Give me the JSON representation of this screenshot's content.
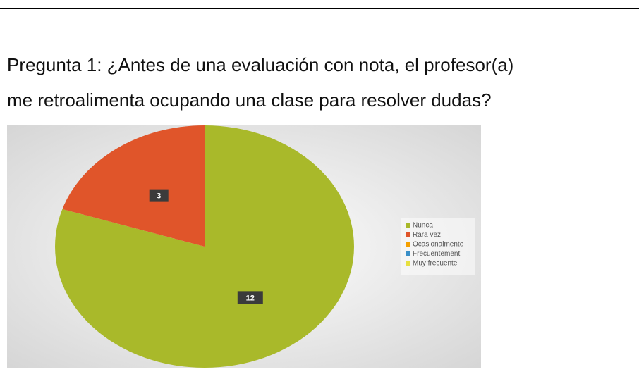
{
  "question_lines": [
    "Pregunta 1: ¿Antes de una evaluación con nota, el profesor(a)",
    "me retroalimenta ocupando una clase para resolver dudas?"
  ],
  "chart_data": {
    "type": "pie",
    "categories": [
      "Nunca",
      "Rara vez",
      "Ocasionalmente",
      "Frecuentement",
      "Muy frecuente"
    ],
    "values": [
      12,
      3,
      0,
      0,
      0
    ],
    "colors": [
      "#a9b92a",
      "#e0552a",
      "#f5a000",
      "#3a8fc8",
      "#e7e040"
    ],
    "legend": "right"
  }
}
